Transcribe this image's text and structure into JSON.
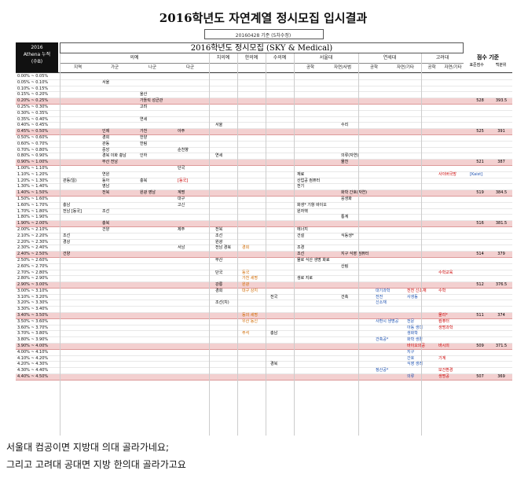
{
  "title": "2016학년도 자연계열 정시모집 입시결과",
  "date_note": "20160428 기준 (5차수정)",
  "left_header": [
    "2016",
    "Athena 누적",
    "(수B)"
  ],
  "main_header": "2016학년도 정시모집 (SKY & Medical)",
  "right_header": "점수 기준",
  "right_sub": [
    "표준점수",
    "백분위"
  ],
  "groups": [
    {
      "label": "의예",
      "subs": [
        "지역",
        "가군",
        "나군",
        "다군"
      ]
    },
    {
      "label": "치의예"
    },
    {
      "label": "한의예"
    },
    {
      "label": "수의예"
    },
    {
      "label": "서울대",
      "subs": [
        "공학",
        "자연/사범"
      ]
    },
    {
      "label": "연세대",
      "subs": [
        "공학",
        "자연/기타"
      ]
    },
    {
      "label": "고려대",
      "subs": [
        "공학",
        "자연/기타"
      ]
    }
  ],
  "rows": [
    {
      "pct": "0.00% ~ 0.05%"
    },
    {
      "pct": "0.05% ~ 0.10%",
      "cells": [
        {
          "c": 1,
          "t": "서울"
        }
      ]
    },
    {
      "pct": "0.10% ~ 0.15%"
    },
    {
      "pct": "0.15% ~ 0.20%",
      "cells": [
        {
          "c": 2,
          "t": "울산"
        }
      ]
    },
    {
      "pct": "0.20% ~ 0.25%",
      "hl": true,
      "cells": [
        {
          "c": 2,
          "t": "가톨릭 성균관"
        }
      ],
      "score": "528",
      "perc": "393.5"
    },
    {
      "pct": "0.25% ~ 0.30%",
      "cells": [
        {
          "c": 2,
          "t": "고려"
        }
      ]
    },
    {
      "pct": "0.30% ~ 0.35%"
    },
    {
      "pct": "0.35% ~ 0.40%",
      "cells": [
        {
          "c": 2,
          "t": "연세"
        }
      ]
    },
    {
      "pct": "0.40% ~ 0.45%",
      "cells": [
        {
          "c": 4,
          "t": "서울"
        },
        {
          "c": 8,
          "t": "수리"
        }
      ]
    },
    {
      "pct": "0.45% ~ 0.50%",
      "hl": true,
      "cells": [
        {
          "c": 1,
          "t": "인제"
        },
        {
          "c": 2,
          "t": "가천"
        },
        {
          "c": 3,
          "t": "아주"
        }
      ],
      "score": "525",
      "perc": "391"
    },
    {
      "pct": "0.50% ~ 0.60%",
      "cells": [
        {
          "c": 1,
          "t": "경희"
        },
        {
          "c": 2,
          "t": "한양"
        }
      ]
    },
    {
      "pct": "0.60% ~ 0.70%",
      "cells": [
        {
          "c": 1,
          "t": "관동"
        },
        {
          "c": 2,
          "t": "한림"
        }
      ]
    },
    {
      "pct": "0.70% ~ 0.80%",
      "cells": [
        {
          "c": 1,
          "t": "중앙"
        },
        {
          "c": 3,
          "t": "순천향"
        }
      ]
    },
    {
      "pct": "0.80% ~ 0.90%",
      "cells": [
        {
          "c": 1,
          "t": "경북 이화 충남"
        },
        {
          "c": 2,
          "t": "인하"
        },
        {
          "c": 4,
          "t": "연세"
        },
        {
          "c": 8,
          "t": "의류(자연)"
        }
      ]
    },
    {
      "pct": "0.90% ~ 1.00%",
      "hl": true,
      "cells": [
        {
          "c": 1,
          "t": "부산 전남"
        },
        {
          "c": 8,
          "t": "물천"
        }
      ],
      "score": "521",
      "perc": "387"
    },
    {
      "pct": "1.00% ~ 1.10%",
      "cells": [
        {
          "c": 3,
          "t": "단국"
        }
      ]
    },
    {
      "pct": "1.10% ~ 1.20%",
      "cells": [
        {
          "c": 1,
          "t": "연원"
        },
        {
          "c": 7,
          "t": "재료"
        },
        {
          "c": 11,
          "t": "사이버국방",
          "cl": "red"
        },
        {
          "c": 12,
          "t": "[Kaist]",
          "cl": "blue"
        }
      ]
    },
    {
      "pct": "1.20% ~ 1.30%",
      "cells": [
        {
          "c": 0,
          "t": "관동(일)"
        },
        {
          "c": 1,
          "t": "동아"
        },
        {
          "c": 2,
          "t": "충북"
        },
        {
          "c": 3,
          "t": "[동국]",
          "cl": "red"
        },
        {
          "c": 7,
          "t": "산업공 컴퓨터"
        }
      ]
    },
    {
      "pct": "1.30% ~ 1.40%",
      "cells": [
        {
          "c": 1,
          "t": "영남"
        },
        {
          "c": 7,
          "t": "전기"
        }
      ]
    },
    {
      "pct": "1.40% ~ 1.50%",
      "hl": true,
      "cells": [
        {
          "c": 1,
          "t": "전북"
        },
        {
          "c": 2,
          "t": "원광 영남"
        },
        {
          "c": 3,
          "t": "계명"
        },
        {
          "c": 8,
          "t": "화학 간호(자연)"
        }
      ],
      "score": "519",
      "perc": "384.5"
    },
    {
      "pct": "1.50% ~ 1.60%",
      "cells": [
        {
          "c": 3,
          "t": "대구"
        },
        {
          "c": 8,
          "t": "응생화"
        }
      ]
    },
    {
      "pct": "1.60% ~ 1.70%",
      "cells": [
        {
          "c": 0,
          "t": "충남"
        },
        {
          "c": 3,
          "t": "고신"
        },
        {
          "c": 7,
          "t": "화생* 기항 바이오"
        }
      ]
    },
    {
      "pct": "1.70% ~ 1.80%",
      "cells": [
        {
          "c": 0,
          "t": "전남 [동국]"
        },
        {
          "c": 1,
          "t": "조선"
        },
        {
          "c": 7,
          "t": "원자핵"
        }
      ]
    },
    {
      "pct": "1.80% ~ 1.90%",
      "cells": [
        {
          "c": 8,
          "t": "통계"
        }
      ]
    },
    {
      "pct": "1.90% ~ 2.00%",
      "hl": true,
      "cells": [
        {
          "c": 1,
          "t": "충북"
        }
      ],
      "score": "516",
      "perc": "381.5"
    },
    {
      "pct": "2.00% ~ 2.10%",
      "cells": [
        {
          "c": 1,
          "t": "건양"
        },
        {
          "c": 3,
          "t": "제주"
        },
        {
          "c": 4,
          "t": "전북"
        },
        {
          "c": 7,
          "t": "에너지"
        }
      ]
    },
    {
      "pct": "2.10% ~ 2.20%",
      "cells": [
        {
          "c": 0,
          "t": "조선"
        },
        {
          "c": 4,
          "t": "조선"
        },
        {
          "c": 7,
          "t": "건설"
        },
        {
          "c": 8,
          "t": "식동생*"
        }
      ]
    },
    {
      "pct": "2.20% ~ 2.30%",
      "cells": [
        {
          "c": 0,
          "t": "경상"
        },
        {
          "c": 4,
          "t": "원광"
        }
      ]
    },
    {
      "pct": "2.30% ~ 2.40%",
      "cells": [
        {
          "c": 3,
          "t": "서남"
        },
        {
          "c": 4,
          "t": "전남 경북"
        },
        {
          "c": 5,
          "t": "경희",
          "cl": "org"
        },
        {
          "c": 7,
          "t": "조경"
        }
      ]
    },
    {
      "pct": "2.40% ~ 2.50%",
      "hl": true,
      "cells": [
        {
          "c": 0,
          "t": "건양"
        },
        {
          "c": 7,
          "t": "조선"
        },
        {
          "c": 8,
          "t": "지구 식영 컴퓨터"
        }
      ],
      "score": "514",
      "perc": "379"
    },
    {
      "pct": "2.50% ~ 2.60%",
      "cells": [
        {
          "c": 4,
          "t": "부산"
        },
        {
          "c": 7,
          "t": "물로 식산 생명 화료"
        }
      ]
    },
    {
      "pct": "2.60% ~ 2.70%",
      "cells": [
        {
          "c": 8,
          "t": "산림"
        }
      ]
    },
    {
      "pct": "2.70% ~ 2.80%",
      "cells": [
        {
          "c": 4,
          "t": "단국"
        },
        {
          "c": 5,
          "t": "동국",
          "cl": "org"
        },
        {
          "c": 11,
          "t": "수학교육",
          "cl": "red"
        }
      ]
    },
    {
      "pct": "2.80% ~ 2.90%",
      "cells": [
        {
          "c": 5,
          "t": "가천 세명",
          "cl": "org"
        },
        {
          "c": 7,
          "t": "생로 지로"
        }
      ]
    },
    {
      "pct": "2.90% ~ 3.00%",
      "hl": true,
      "cells": [
        {
          "c": 4,
          "t": "강릉"
        },
        {
          "c": 5,
          "t": "원광",
          "cl": "org"
        }
      ],
      "score": "512",
      "perc": "376.5"
    },
    {
      "pct": "3.00% ~ 3.10%",
      "cells": [
        {
          "c": 4,
          "t": "경희"
        },
        {
          "c": 5,
          "t": "대구 상지",
          "cl": "org"
        },
        {
          "c": 9,
          "t": "대기과학",
          "cl": "blue"
        },
        {
          "c": 10,
          "t": "전전 신소재",
          "cl": "red"
        },
        {
          "c": 11,
          "t": "수학",
          "cl": "red"
        }
      ]
    },
    {
      "pct": "3.10% ~ 3.20%",
      "cells": [
        {
          "c": 6,
          "t": "전국"
        },
        {
          "c": 8,
          "t": "건축"
        },
        {
          "c": 9,
          "t": "전전",
          "cl": "blue"
        },
        {
          "c": 10,
          "t": "사생동",
          "cl": "blue"
        }
      ]
    },
    {
      "pct": "3.20% ~ 3.30%",
      "cells": [
        {
          "c": 4,
          "t": "조선(치)"
        },
        {
          "c": 9,
          "t": "신소재",
          "cl": "blue"
        }
      ]
    },
    {
      "pct": "3.30% ~ 3.40%"
    },
    {
      "pct": "3.40% ~ 3.50%",
      "hl": true,
      "cells": [
        {
          "c": 5,
          "t": "동의 세명",
          "cl": "org"
        },
        {
          "c": 11,
          "t": "물리*",
          "cl": "red"
        }
      ],
      "score": "511",
      "perc": "374"
    },
    {
      "pct": "3.50% ~ 3.60%",
      "cells": [
        {
          "c": 5,
          "t": "우산 동신",
          "cl": "org"
        },
        {
          "c": 9,
          "t": "사환시 생명공",
          "cl": "blue"
        },
        {
          "c": 10,
          "t": "전문",
          "cl": "blue"
        },
        {
          "c": 11,
          "t": "컴퓨터",
          "cl": "red"
        }
      ]
    },
    {
      "pct": "3.60% ~ 3.70%",
      "cells": [
        {
          "c": 10,
          "t": "아동 생디",
          "cl": "blue"
        },
        {
          "c": 11,
          "t": "생명과학",
          "cl": "red"
        }
      ]
    },
    {
      "pct": "3.70% ~ 3.80%",
      "cells": [
        {
          "c": 5,
          "t": "주석",
          "cl": "org"
        },
        {
          "c": 6,
          "t": "충남"
        },
        {
          "c": 10,
          "t": "생화학",
          "cl": "blue"
        }
      ]
    },
    {
      "pct": "3.80% ~ 3.90%",
      "cells": [
        {
          "c": 9,
          "t": "건축공*",
          "cl": "blue"
        },
        {
          "c": 10,
          "t": "화학 생활",
          "cl": "blue"
        }
      ]
    },
    {
      "pct": "3.90% ~ 4.00%",
      "hl": true,
      "cells": [
        {
          "c": 10,
          "t": "바이오의공",
          "cl": "red"
        },
        {
          "c": 11,
          "t": "바시의",
          "cl": "red"
        }
      ],
      "score": "509",
      "perc": "371.5"
    },
    {
      "pct": "4.00% ~ 4.10%",
      "cells": [
        {
          "c": 10,
          "t": "지구",
          "cl": "blue"
        }
      ]
    },
    {
      "pct": "4.10% ~ 4.20%",
      "cells": [
        {
          "c": 10,
          "t": "간호",
          "cl": "blue"
        },
        {
          "c": 11,
          "t": "기계",
          "cl": "red"
        }
      ]
    },
    {
      "pct": "4.20% ~ 4.30%",
      "cells": [
        {
          "c": 6,
          "t": "경북"
        },
        {
          "c": 10,
          "t": "식영 생리",
          "cl": "blue"
        }
      ]
    },
    {
      "pct": "4.30% ~ 4.40%",
      "cells": [
        {
          "c": 9,
          "t": "정산공*",
          "cl": "blue"
        },
        {
          "c": 11,
          "t": "보건환경",
          "cl": "red"
        }
      ]
    },
    {
      "pct": "4.40% ~ 4.50%",
      "hl": true,
      "cells": [
        {
          "c": 10,
          "t": "의류",
          "cl": "blue"
        },
        {
          "c": 11,
          "t": "생명공",
          "cl": "red"
        }
      ],
      "score": "507",
      "perc": "369"
    }
  ],
  "captions": [
    "서울대 컴공이면 지방대 의대 골라가네요;",
    "그리고 고려대 공대면 지방 한의대 골라가고요"
  ]
}
